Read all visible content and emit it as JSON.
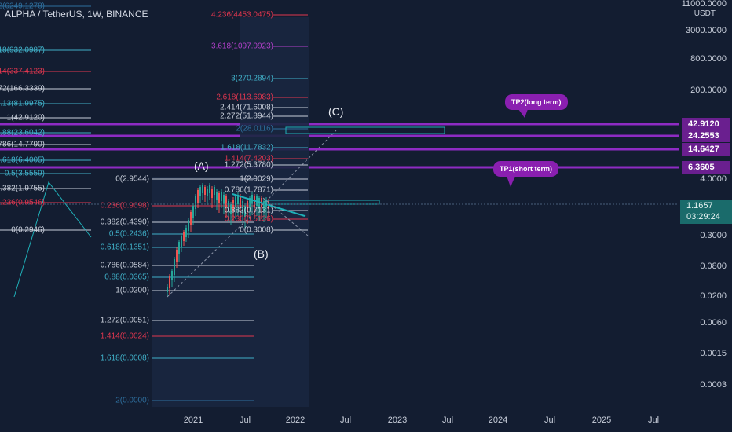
{
  "symbol_title": "ALPHA / TetherUS, 1W, BINANCE",
  "price_axis": {
    "unit": "USDT",
    "ticks": [
      "11000.0000",
      "3000.0000",
      "800.0000",
      "200.0000",
      "42.9120",
      "24.2553",
      "14.6427",
      "6.3605",
      "4.0000",
      "1.1657",
      "0.3000",
      "0.0800",
      "0.0200",
      "0.0060",
      "0.0015",
      "0.0003"
    ],
    "levels": [
      {
        "label": "42.9120",
        "color": "#6a1f8f"
      },
      {
        "label": "24.2553",
        "color": "#6a1f8f"
      },
      {
        "label": "14.6427",
        "color": "#6a1f8f"
      },
      {
        "label": "6.3605",
        "color": "#6a1f8f"
      }
    ],
    "current_price": "1.1657",
    "countdown": "03:29:24"
  },
  "time_axis": [
    "2021",
    "Jul",
    "2022",
    "Jul",
    "2023",
    "Jul",
    "2024",
    "Jul",
    "2025",
    "Jul"
  ],
  "annotations": {
    "wave_a": "(A)",
    "wave_b": "(B)",
    "wave_c": "(C)",
    "tp2": "TP2(long term)",
    "tp1": "TP1(short term)"
  },
  "left_fib": [
    {
      "label": "2(6249.1278)",
      "color": "#2e6f9e"
    },
    {
      "label": "18(932.0987)",
      "color": "#40b0c8"
    },
    {
      "label": "14(337.4123)",
      "color": "#e0364f"
    },
    {
      "label": "72(166.3339)",
      "color": "#c9cfdb"
    },
    {
      "label": ".13(81.9975)",
      "color": "#40b0c8"
    },
    {
      "label": "1(42.9120)",
      "color": "#c9cfdb"
    },
    {
      "label": ".88(23.6042)",
      "color": "#40b0c8"
    },
    {
      "label": "786(14.7790)",
      "color": "#c9cfdb"
    },
    {
      "label": "0.618(6.4005)",
      "color": "#40b0c8"
    },
    {
      "label": "0.5(3.5559)",
      "color": "#40b0c8"
    },
    {
      "label": "0.382(1.9755)",
      "color": "#c9cfdb"
    },
    {
      "label": "0.236(0.9546)",
      "color": "#e0364f"
    },
    {
      "label": "0(0.2946)",
      "color": "#c9cfdb"
    }
  ],
  "mid_fib": [
    {
      "label": "0(2.9544)",
      "color": "#c9cfdb"
    },
    {
      "label": "0.236(0.9098)",
      "color": "#e0364f"
    },
    {
      "label": "0.382(0.4390)",
      "color": "#c9cfdb"
    },
    {
      "label": "0.5(0.2436)",
      "color": "#40b0c8"
    },
    {
      "label": "0.618(0.1351)",
      "color": "#40b0c8"
    },
    {
      "label": "0.786(0.0584)",
      "color": "#c9cfdb"
    },
    {
      "label": "0.88(0.0365)",
      "color": "#40b0c8"
    },
    {
      "label": "1(0.0200)",
      "color": "#c9cfdb"
    },
    {
      "label": "1.272(0.0051)",
      "color": "#c9cfdb"
    },
    {
      "label": "1.414(0.0024)",
      "color": "#e0364f"
    },
    {
      "label": "1.618(0.0008)",
      "color": "#40b0c8"
    },
    {
      "label": "2(0.0000)",
      "color": "#2e6f9e"
    }
  ],
  "right_fib": [
    {
      "label": "4.236(4453.0475)",
      "color": "#e0364f"
    },
    {
      "label": "3.618(1097.0923)",
      "color": "#b040c8"
    },
    {
      "label": "3(270.2894)",
      "color": "#40b0c8"
    },
    {
      "label": "2.618(113.6983)",
      "color": "#e0364f"
    },
    {
      "label": "2.414(71.6008)",
      "color": "#c9cfdb"
    },
    {
      "label": "2.272(51.8944)",
      "color": "#c9cfdb"
    },
    {
      "label": "2(28.0116)",
      "color": "#2e6f9e"
    },
    {
      "label": "1.618(11.7832)",
      "color": "#40b0c8"
    },
    {
      "label": "1.414(7.4203)",
      "color": "#e0364f"
    },
    {
      "label": "1.272(5.3780)",
      "color": "#c9cfdb"
    },
    {
      "label": "1(2.9029)",
      "color": "#c9cfdb"
    },
    {
      "label": "0.786(1.7871)",
      "color": "#c9cfdb"
    },
    {
      "label": "0.382(0.7131)",
      "color": "#c9cfdb"
    },
    {
      "label": "0.236(0.5136)",
      "color": "#e0364f"
    },
    {
      "label": "0(0.3008)",
      "color": "#c9cfdb"
    }
  ],
  "colors": {
    "background": "#131d31",
    "level_line": "#8e2bc4",
    "trend_line": "#1fb0b8",
    "candle_up": "#26a69a",
    "candle_down": "#ef5350"
  }
}
